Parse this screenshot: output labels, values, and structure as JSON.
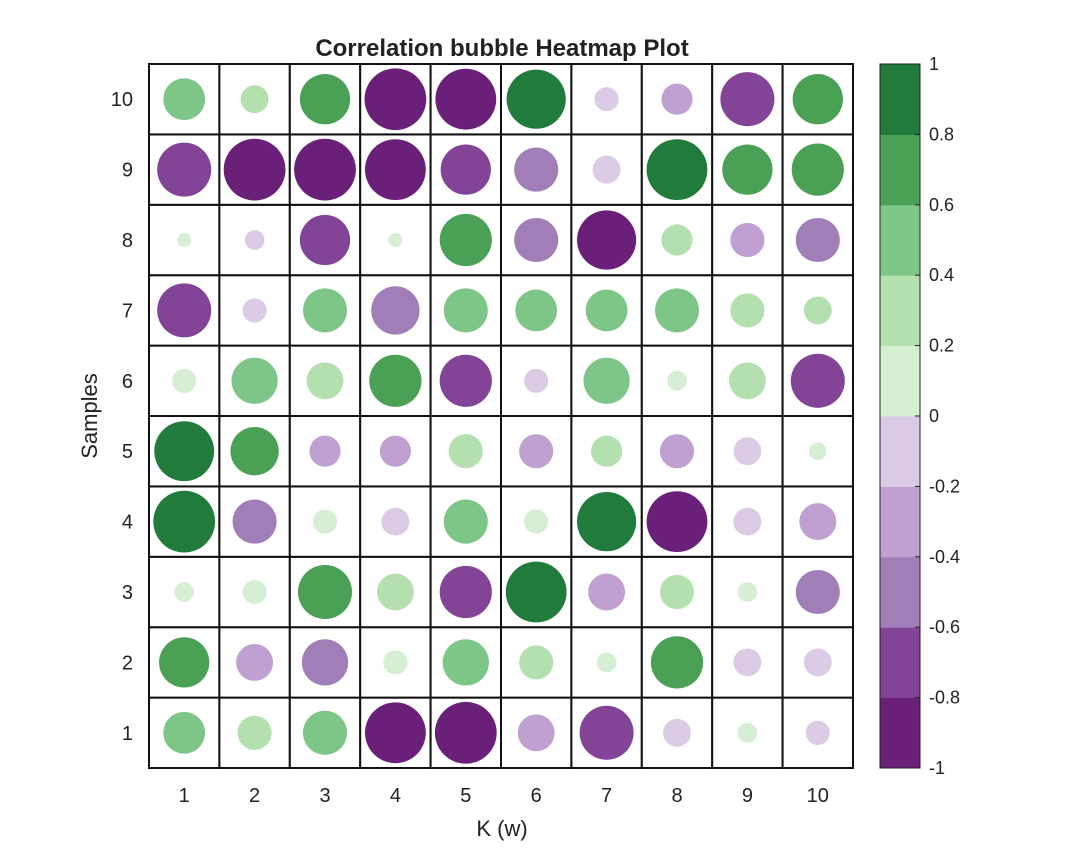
{
  "chart_data": {
    "type": "heatmap",
    "title": "Correlation bubble Heatmap Plot",
    "xlabel": "K (w)",
    "ylabel": "Samples",
    "x_categories": [
      "1",
      "2",
      "3",
      "4",
      "5",
      "6",
      "7",
      "8",
      "9",
      "10"
    ],
    "y_categories": [
      "1",
      "2",
      "3",
      "4",
      "5",
      "6",
      "7",
      "8",
      "9",
      "10"
    ],
    "value_range": [
      -1,
      1
    ],
    "colorbar": {
      "ticks": [
        -1,
        -0.8,
        -0.6,
        -0.4,
        -0.2,
        0,
        0.2,
        0.4,
        0.6,
        0.8,
        1
      ],
      "tick_labels": [
        "-1",
        "-0.8",
        "-0.6",
        "-0.4",
        "-0.2",
        "0",
        "0.2",
        "0.4",
        "0.6",
        "0.8",
        "1"
      ],
      "bins": 10,
      "colors_low_to_high": [
        "#6a1f78",
        "#834497",
        "#a27eb9",
        "#bfa0d0",
        "#dccbe5",
        "#d6eed4",
        "#b4e0b0",
        "#7ec688",
        "#4aa156",
        "#217b3c"
      ]
    },
    "rows": [
      {
        "sample": "1",
        "values": [
          0.45,
          0.3,
          0.5,
          -0.95,
          -0.98,
          -0.35,
          -0.75,
          -0.2,
          0.1,
          -0.15
        ]
      },
      {
        "sample": "2",
        "values": [
          0.65,
          -0.35,
          -0.55,
          0.15,
          0.55,
          0.3,
          0.1,
          0.7,
          -0.2,
          -0.2
        ]
      },
      {
        "sample": "3",
        "values": [
          0.1,
          0.15,
          0.75,
          0.35,
          -0.7,
          0.95,
          -0.35,
          0.3,
          0.1,
          -0.5
        ]
      },
      {
        "sample": "4",
        "values": [
          0.98,
          -0.5,
          0.15,
          -0.2,
          0.5,
          0.15,
          0.9,
          -0.95,
          -0.2,
          -0.35
        ]
      },
      {
        "sample": "5",
        "values": [
          0.92,
          0.6,
          -0.25,
          -0.25,
          0.3,
          -0.3,
          0.25,
          -0.3,
          -0.2,
          0.08
        ]
      },
      {
        "sample": "6",
        "values": [
          0.15,
          0.55,
          0.35,
          0.7,
          -0.7,
          -0.15,
          0.55,
          0.1,
          0.35,
          -0.75
        ]
      },
      {
        "sample": "7",
        "values": [
          -0.75,
          -0.15,
          0.5,
          -0.6,
          0.5,
          0.45,
          0.45,
          0.5,
          0.3,
          0.2
        ]
      },
      {
        "sample": "8",
        "values": [
          0.05,
          -0.1,
          -0.65,
          0.05,
          0.7,
          -0.5,
          -0.9,
          0.25,
          -0.3,
          -0.5
        ]
      },
      {
        "sample": "9",
        "values": [
          -0.75,
          -0.98,
          -0.98,
          -0.95,
          -0.65,
          -0.5,
          -0.2,
          0.95,
          0.65,
          0.7
        ]
      },
      {
        "sample": "10",
        "values": [
          0.45,
          0.2,
          0.65,
          -0.98,
          -0.95,
          0.9,
          -0.15,
          -0.25,
          -0.75,
          0.65
        ]
      }
    ]
  }
}
